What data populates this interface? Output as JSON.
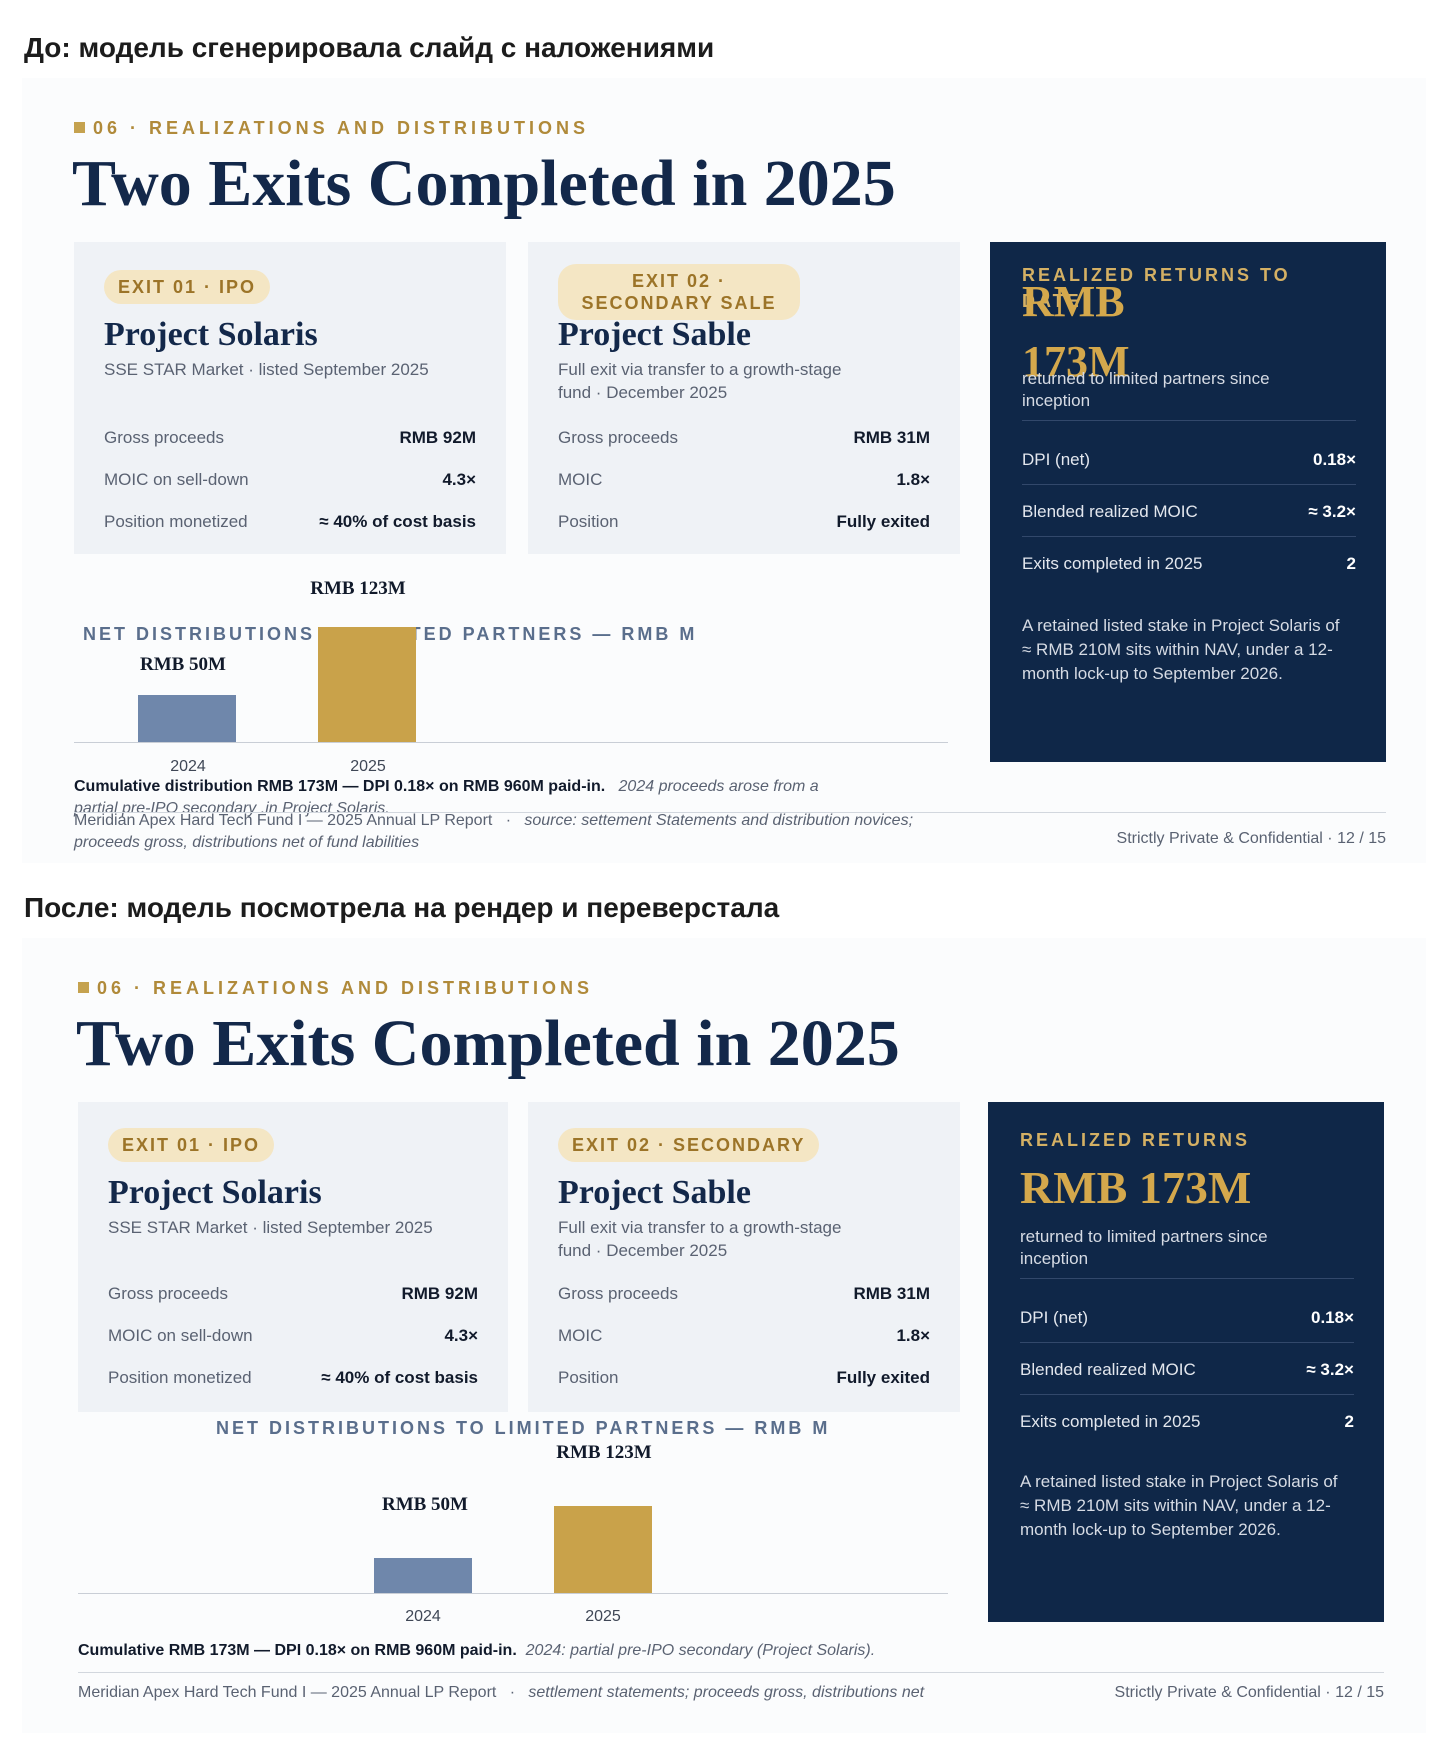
{
  "captions": {
    "before": "До: модель сгенерировала слайд с наложениями",
    "after": "После: модель посмотрела на рендер и переверстала"
  },
  "before": {
    "eyebrow": "06 · REALIZATIONS AND DISTRIBUTIONS",
    "title": "Two Exits Completed in 2025",
    "exit1": {
      "pill": "EXIT 01 · IPO",
      "name": "Project Solaris",
      "sub": "SSE STAR Market · listed September 2025",
      "rows": [
        {
          "label": "Gross proceeds",
          "value": "RMB 92M"
        },
        {
          "label": "MOIC on sell-down",
          "value": "4.3×"
        },
        {
          "label": "Position monetized",
          "value": "≈ 40% of cost basis"
        }
      ]
    },
    "exit2": {
      "pill": "EXIT 02 · SECONDARY SALE",
      "name": "Project Sable",
      "sub": "Full exit via transfer to a growth-stage fund · December 2025",
      "rows": [
        {
          "label": "Gross proceeds",
          "value": "RMB 31M"
        },
        {
          "label": "MOIC",
          "value": "1.8×"
        },
        {
          "label": "Position",
          "value": "Fully exited"
        }
      ]
    },
    "panel": {
      "kicker": "REALIZED RETURNS TO DATE",
      "big": "RMB 173M",
      "desc": "returned to limited partners since inception",
      "rows": [
        {
          "label": "DPI (net)",
          "value": "0.18×"
        },
        {
          "label": "Blended realized MOIC",
          "value": "≈ 3.2×"
        },
        {
          "label": "Exits completed in 2025",
          "value": "2"
        }
      ],
      "note": "A retained listed stake in Project Solaris of ≈ RMB 210M sits within NAV, under a 12-month lock-up to September 2026."
    },
    "chart_title": "NET DISTRIBUTIONS TO LIMITED PARTNERS — RMB M",
    "cum_bold": "Cumulative  distribution RMB 173M — DPI 0.18× on RMB 960M paid-in.",
    "cum_italic": "2024 proceeds arose from a",
    "cum_italic2": "partial pre-IPO secondary .in Project Solaris.",
    "footer_left": "Meridian Apex Hard Tech Fund I — 2025 Annual LP Report",
    "footer_dot": "·",
    "footer_source": "source: settement Statements and distribution novices;",
    "footer_source2": "proceeds gross, distributions net of fund labilities",
    "footer_right": "Strictly Private & Confidential  ·  12 / 15"
  },
  "after": {
    "eyebrow": "06 · REALIZATIONS AND DISTRIBUTIONS",
    "title": "Two Exits Completed in 2025",
    "exit1": {
      "pill": "EXIT 01 · IPO",
      "name": "Project Solaris",
      "sub": "SSE STAR Market · listed September 2025",
      "rows": [
        {
          "label": "Gross proceeds",
          "value": "RMB 92M"
        },
        {
          "label": "MOIC on sell-down",
          "value": "4.3×"
        },
        {
          "label": "Position monetized",
          "value": "≈ 40% of cost basis"
        }
      ]
    },
    "exit2": {
      "pill": "EXIT 02 · SECONDARY",
      "name": "Project Sable",
      "sub": "Full exit via transfer to a growth-stage fund · December 2025",
      "rows": [
        {
          "label": "Gross proceeds",
          "value": "RMB 31M"
        },
        {
          "label": "MOIC",
          "value": "1.8×"
        },
        {
          "label": "Position",
          "value": "Fully exited"
        }
      ]
    },
    "panel": {
      "kicker": "REALIZED RETURNS",
      "big": "RMB 173M",
      "desc": "returned to limited partners since inception",
      "rows": [
        {
          "label": "DPI (net)",
          "value": "0.18×"
        },
        {
          "label": "Blended realized MOIC",
          "value": "≈ 3.2×"
        },
        {
          "label": "Exits completed in 2025",
          "value": "2"
        }
      ],
      "note": "A retained listed stake in Project Solaris of ≈ RMB 210M sits within NAV, under a 12-month lock-up to September 2026."
    },
    "chart_title": "NET DISTRIBUTIONS TO LIMITED PARTNERS — RMB M",
    "cum_bold": "Cumulative RMB 173M — DPI 0.18× on RMB 960M paid-in.",
    "cum_italic": "2024: partial pre-IPO secondary (Project Solaris).",
    "footer_left": "Meridian Apex Hard Tech Fund I — 2025 Annual LP Report",
    "footer_dot": "·",
    "footer_source": "settlement statements; proceeds gross, distributions net",
    "footer_right": "Strictly Private & Confidential  ·  12 / 15"
  },
  "chart_data": [
    {
      "type": "bar",
      "title": "NET DISTRIBUTIONS TO LIMITED PARTNERS — RMB M",
      "categories": [
        "2024",
        "2025"
      ],
      "values": [
        50,
        123
      ],
      "data_labels": [
        "RMB 50M",
        "RMB 123M"
      ],
      "colors": [
        "#6f87ab",
        "#c9a24a"
      ]
    },
    {
      "type": "bar",
      "title": "NET DISTRIBUTIONS TO LIMITED PARTNERS — RMB M",
      "categories": [
        "2024",
        "2025"
      ],
      "values": [
        50,
        123
      ],
      "data_labels": [
        "RMB 50M",
        "RMB 123M"
      ],
      "colors": [
        "#6f87ab",
        "#c9a24a"
      ]
    }
  ]
}
